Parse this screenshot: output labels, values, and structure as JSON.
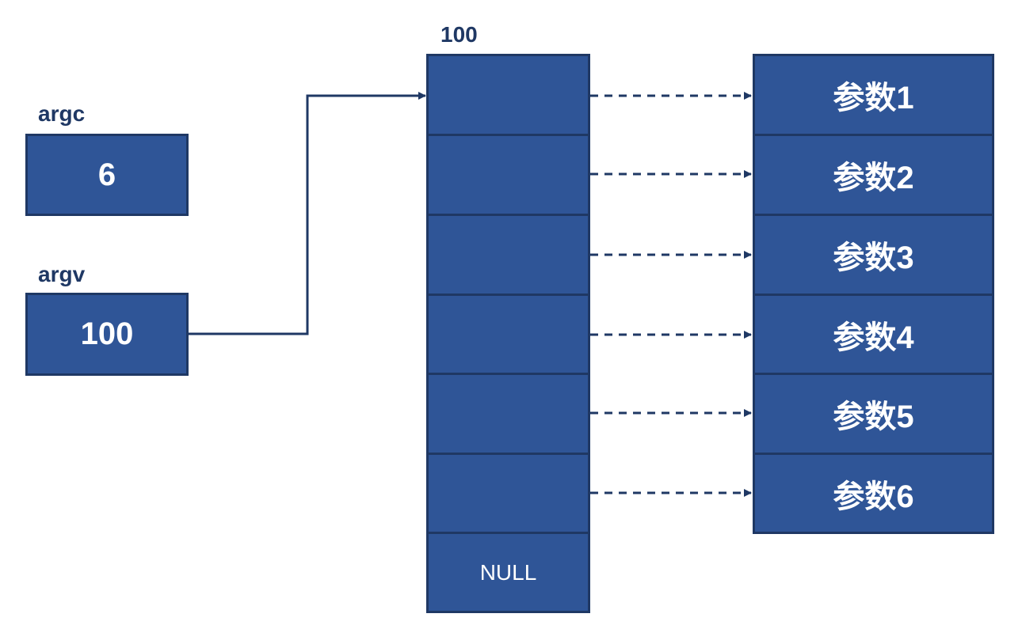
{
  "argc": {
    "label": "argc",
    "value": "6"
  },
  "argv": {
    "label": "argv",
    "value": "100"
  },
  "array": {
    "address": "100",
    "cells": [
      "",
      "",
      "",
      "",
      "",
      "",
      "NULL"
    ]
  },
  "params": [
    "参数1",
    "参数2",
    "参数3",
    "参数4",
    "参数5",
    "参数6"
  ],
  "colors": {
    "fill": "#2f5597",
    "border": "#1f3864",
    "text_dark": "#1f3864",
    "text_light": "#ffffff"
  }
}
